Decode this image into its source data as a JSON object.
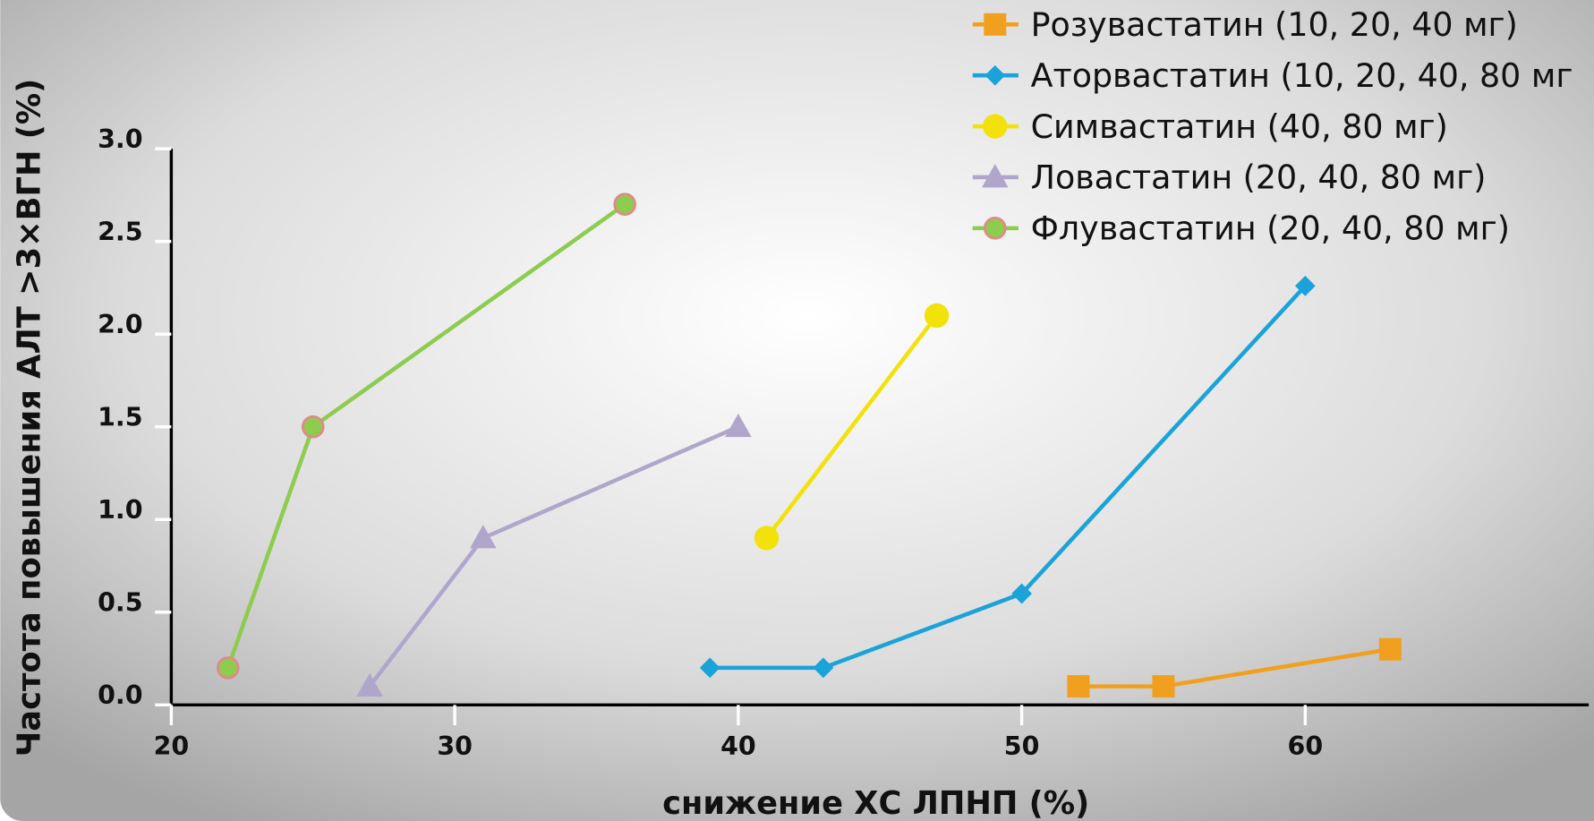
{
  "chart_data": {
    "type": "line",
    "x_label": "снижение ХС ЛПНП (%)",
    "y_label": "Частота повышения АЛТ >3×ВГН (%)",
    "xlim": [
      20,
      70
    ],
    "xticks": [
      20,
      30,
      40,
      50,
      60
    ],
    "ylim": [
      0,
      3
    ],
    "yticks": [
      {
        "value": 0,
        "label": "0.0"
      },
      {
        "value": 0.5,
        "label": "0.5"
      },
      {
        "value": 1,
        "label": "1.0"
      },
      {
        "value": 1.5,
        "label": "1.5"
      },
      {
        "value": 2,
        "label": "2.0"
      },
      {
        "value": 2.5,
        "label": "2.5"
      },
      {
        "value": 3,
        "label": "3.0"
      }
    ],
    "legend_position": "top-right",
    "series": [
      {
        "name": "Розувастатин (10, 20, 40 мг)",
        "color": "#f0a01e",
        "marker": "square",
        "x": [
          52,
          55,
          63
        ],
        "values": [
          0.1,
          0.1,
          0.3
        ]
      },
      {
        "name": "Аторвастатин (10, 20, 40, 80 мг",
        "color": "#1aa3d9",
        "marker": "diamond",
        "x": [
          39,
          43,
          50,
          60
        ],
        "values": [
          0.2,
          0.2,
          0.6,
          2.26
        ]
      },
      {
        "name": "Симвастатин (40, 80 мг)",
        "color": "#f3e10c",
        "marker": "circle",
        "x": [
          41,
          47
        ],
        "values": [
          0.9,
          2.1
        ]
      },
      {
        "name": "Ловастатин (20, 40, 80 мг)",
        "color": "#b0a6cc",
        "marker": "triangle",
        "x": [
          27,
          31,
          40
        ],
        "values": [
          0.1,
          0.9,
          1.5
        ]
      },
      {
        "name": "Флувастатин (20, 40, 80 мг)",
        "color": "#8dcc4f",
        "marker": "ringed-circle",
        "x": [
          22,
          25,
          36
        ],
        "values": [
          0.2,
          1.5,
          2.7
        ]
      }
    ]
  }
}
